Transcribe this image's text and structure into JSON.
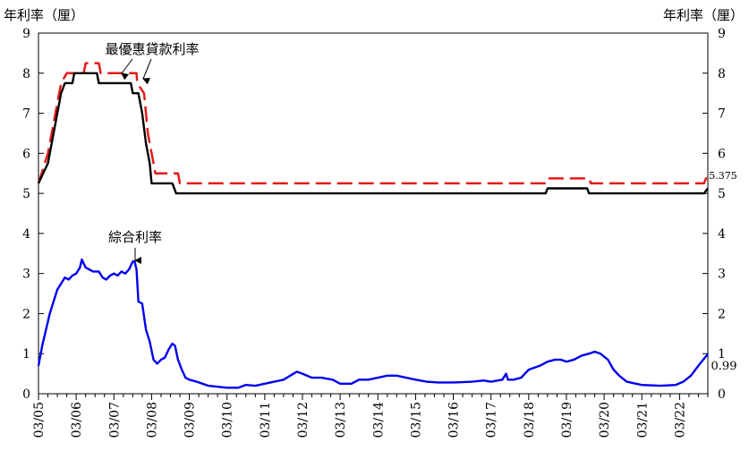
{
  "chart_data": {
    "type": "line",
    "y_axis_label_left": "年利率（厘）",
    "y_axis_label_right": "年利率（厘）",
    "ylim": [
      0,
      9
    ],
    "y_ticks": [
      "0",
      "1",
      "2",
      "3",
      "4",
      "5",
      "6",
      "7",
      "8",
      "9"
    ],
    "xlim": [
      2005,
      2022.75
    ],
    "x_ticks": [
      {
        "x": 2005,
        "label": "03/05"
      },
      {
        "x": 2006,
        "label": "03/06"
      },
      {
        "x": 2007,
        "label": "03/07"
      },
      {
        "x": 2008,
        "label": "03/08"
      },
      {
        "x": 2009,
        "label": "03/09"
      },
      {
        "x": 2010,
        "label": "03/10"
      },
      {
        "x": 2011,
        "label": "03/11"
      },
      {
        "x": 2012,
        "label": "03/12"
      },
      {
        "x": 2013,
        "label": "03/13"
      },
      {
        "x": 2014,
        "label": "03/14"
      },
      {
        "x": 2015,
        "label": "03/15"
      },
      {
        "x": 2016,
        "label": "03/16"
      },
      {
        "x": 2017,
        "label": "03/17"
      },
      {
        "x": 2018,
        "label": "03/18"
      },
      {
        "x": 2019,
        "label": "03/19"
      },
      {
        "x": 2020,
        "label": "03/20"
      },
      {
        "x": 2021,
        "label": "03/21"
      },
      {
        "x": 2022,
        "label": "03/22"
      }
    ],
    "grid": false,
    "legend": "none",
    "series": [
      {
        "color": "#e41a1a",
        "style": "dashed",
        "points": [
          [
            2005.0,
            5.25
          ],
          [
            2005.25,
            6.0
          ],
          [
            2005.45,
            7.0
          ],
          [
            2005.6,
            7.75
          ],
          [
            2005.75,
            8.0
          ],
          [
            2006.2,
            8.0
          ],
          [
            2006.25,
            8.25
          ],
          [
            2006.6,
            8.25
          ],
          [
            2006.65,
            8.0
          ],
          [
            2007.6,
            8.0
          ],
          [
            2007.62,
            7.75
          ],
          [
            2007.8,
            7.5
          ],
          [
            2007.9,
            6.5
          ],
          [
            2008.0,
            6.0
          ],
          [
            2008.1,
            5.5
          ],
          [
            2008.7,
            5.5
          ],
          [
            2008.75,
            5.25
          ],
          [
            2018.45,
            5.25
          ],
          [
            2018.5,
            5.375
          ],
          [
            2019.6,
            5.375
          ],
          [
            2019.65,
            5.25
          ],
          [
            2022.65,
            5.25
          ],
          [
            2022.7,
            5.375
          ],
          [
            2022.75,
            5.375
          ]
        ]
      },
      {
        "color": "#000000",
        "style": "solid",
        "points": [
          [
            2005.0,
            5.25
          ],
          [
            2005.25,
            5.75
          ],
          [
            2005.45,
            6.75
          ],
          [
            2005.6,
            7.5
          ],
          [
            2005.7,
            7.75
          ],
          [
            2005.9,
            7.75
          ],
          [
            2005.95,
            8.0
          ],
          [
            2006.55,
            8.0
          ],
          [
            2006.6,
            7.75
          ],
          [
            2007.45,
            7.75
          ],
          [
            2007.5,
            7.5
          ],
          [
            2007.65,
            7.5
          ],
          [
            2007.75,
            7.0
          ],
          [
            2007.85,
            6.25
          ],
          [
            2007.95,
            5.75
          ],
          [
            2008.0,
            5.25
          ],
          [
            2008.55,
            5.25
          ],
          [
            2008.65,
            5.0
          ],
          [
            2018.45,
            5.0
          ],
          [
            2018.5,
            5.125
          ],
          [
            2019.55,
            5.125
          ],
          [
            2019.6,
            5.0
          ],
          [
            2022.65,
            5.0
          ],
          [
            2022.75,
            5.125
          ]
        ]
      },
      {
        "color": "#0000ee",
        "style": "solid",
        "points": [
          [
            2005.0,
            0.7
          ],
          [
            2005.1,
            1.2
          ],
          [
            2005.3,
            2.0
          ],
          [
            2005.5,
            2.6
          ],
          [
            2005.7,
            2.9
          ],
          [
            2005.8,
            2.85
          ],
          [
            2005.9,
            2.95
          ],
          [
            2006.0,
            3.0
          ],
          [
            2006.1,
            3.15
          ],
          [
            2006.15,
            3.35
          ],
          [
            2006.25,
            3.15
          ],
          [
            2006.35,
            3.1
          ],
          [
            2006.45,
            3.05
          ],
          [
            2006.6,
            3.05
          ],
          [
            2006.7,
            2.9
          ],
          [
            2006.8,
            2.85
          ],
          [
            2006.9,
            2.95
          ],
          [
            2007.0,
            3.0
          ],
          [
            2007.1,
            2.95
          ],
          [
            2007.2,
            3.05
          ],
          [
            2007.3,
            3.0
          ],
          [
            2007.4,
            3.1
          ],
          [
            2007.5,
            3.3
          ],
          [
            2007.55,
            3.3
          ],
          [
            2007.6,
            3.1
          ],
          [
            2007.65,
            2.3
          ],
          [
            2007.75,
            2.25
          ],
          [
            2007.85,
            1.6
          ],
          [
            2007.95,
            1.3
          ],
          [
            2008.05,
            0.85
          ],
          [
            2008.15,
            0.75
          ],
          [
            2008.25,
            0.85
          ],
          [
            2008.35,
            0.9
          ],
          [
            2008.45,
            1.1
          ],
          [
            2008.55,
            1.25
          ],
          [
            2008.62,
            1.2
          ],
          [
            2008.7,
            0.85
          ],
          [
            2008.8,
            0.6
          ],
          [
            2008.9,
            0.4
          ],
          [
            2009.0,
            0.35
          ],
          [
            2009.2,
            0.3
          ],
          [
            2009.5,
            0.2
          ],
          [
            2010.0,
            0.15
          ],
          [
            2010.3,
            0.15
          ],
          [
            2010.5,
            0.22
          ],
          [
            2010.75,
            0.2
          ],
          [
            2011.0,
            0.25
          ],
          [
            2011.5,
            0.35
          ],
          [
            2011.85,
            0.55
          ],
          [
            2012.0,
            0.5
          ],
          [
            2012.25,
            0.4
          ],
          [
            2012.5,
            0.4
          ],
          [
            2012.8,
            0.35
          ],
          [
            2013.0,
            0.25
          ],
          [
            2013.3,
            0.25
          ],
          [
            2013.5,
            0.35
          ],
          [
            2013.75,
            0.35
          ],
          [
            2014.0,
            0.4
          ],
          [
            2014.25,
            0.45
          ],
          [
            2014.5,
            0.45
          ],
          [
            2014.75,
            0.4
          ],
          [
            2015.0,
            0.35
          ],
          [
            2015.3,
            0.3
          ],
          [
            2015.6,
            0.28
          ],
          [
            2016.0,
            0.28
          ],
          [
            2016.5,
            0.3
          ],
          [
            2016.8,
            0.33
          ],
          [
            2017.0,
            0.3
          ],
          [
            2017.3,
            0.35
          ],
          [
            2017.4,
            0.5
          ],
          [
            2017.45,
            0.35
          ],
          [
            2017.6,
            0.35
          ],
          [
            2017.8,
            0.4
          ],
          [
            2018.0,
            0.6
          ],
          [
            2018.3,
            0.7
          ],
          [
            2018.5,
            0.8
          ],
          [
            2018.7,
            0.85
          ],
          [
            2018.85,
            0.85
          ],
          [
            2019.0,
            0.8
          ],
          [
            2019.2,
            0.85
          ],
          [
            2019.4,
            0.95
          ],
          [
            2019.6,
            1.0
          ],
          [
            2019.75,
            1.05
          ],
          [
            2019.9,
            1.0
          ],
          [
            2020.1,
            0.85
          ],
          [
            2020.25,
            0.6
          ],
          [
            2020.4,
            0.45
          ],
          [
            2020.6,
            0.3
          ],
          [
            2021.0,
            0.22
          ],
          [
            2021.5,
            0.2
          ],
          [
            2021.9,
            0.22
          ],
          [
            2022.1,
            0.3
          ],
          [
            2022.3,
            0.45
          ],
          [
            2022.5,
            0.7
          ],
          [
            2022.75,
            0.99
          ]
        ]
      }
    ],
    "annotations": [
      {
        "text": "最優惠貸款利率"
      },
      {
        "text": "綜合利率"
      },
      {
        "text": "5.375"
      },
      {
        "text": "0.99"
      }
    ]
  }
}
